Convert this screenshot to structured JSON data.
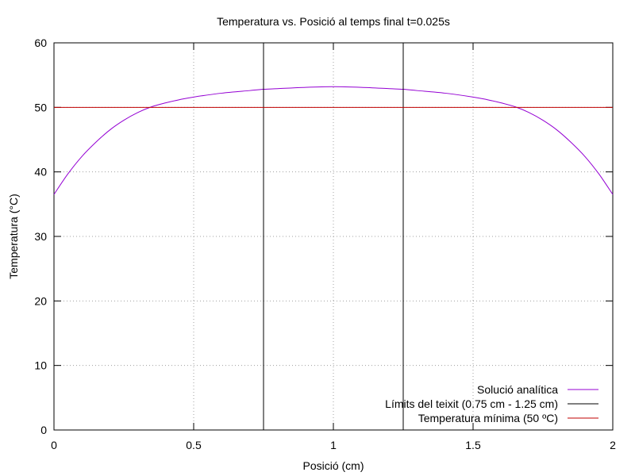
{
  "chart_data": {
    "type": "line",
    "title": "Temperatura vs. Posició al temps final t=0.025s",
    "xlabel": "Posició (cm)",
    "ylabel": "Temperatura (°C)",
    "xlim": [
      0,
      2
    ],
    "ylim": [
      0,
      60
    ],
    "xticks": [
      0,
      0.5,
      1,
      1.5,
      2
    ],
    "xtick_labels": [
      "0",
      "0.5",
      "1",
      "1.5",
      "2"
    ],
    "yticks": [
      0,
      10,
      20,
      30,
      40,
      50,
      60
    ],
    "ytick_labels": [
      "0",
      "10",
      "20",
      "30",
      "40",
      "50",
      "60"
    ],
    "grid": "dotted",
    "legend_position": "bottom-right",
    "series": [
      {
        "name": "Solució analítica",
        "color": "#9400d3",
        "x": [
          0,
          0.05,
          0.1,
          0.15,
          0.2,
          0.25,
          0.3,
          0.35,
          0.4,
          0.45,
          0.5,
          0.6,
          0.7,
          0.75,
          0.8,
          0.9,
          1.0,
          1.1,
          1.2,
          1.25,
          1.3,
          1.4,
          1.5,
          1.55,
          1.6,
          1.65,
          1.7,
          1.75,
          1.8,
          1.85,
          1.9,
          1.95,
          2.0
        ],
        "y": [
          36.5,
          39.7,
          42.4,
          44.6,
          46.5,
          48.0,
          49.2,
          50.1,
          50.7,
          51.2,
          51.6,
          52.2,
          52.6,
          52.8,
          52.9,
          53.1,
          53.2,
          53.1,
          52.9,
          52.8,
          52.6,
          52.2,
          51.6,
          51.2,
          50.7,
          50.1,
          49.2,
          48.0,
          46.5,
          44.6,
          42.4,
          39.7,
          36.5
        ]
      },
      {
        "name": "Límits del teixit (0.75 cm - 1.25 cm)",
        "color": "#000000",
        "vlines": [
          0.75,
          1.25
        ]
      },
      {
        "name": "Temperatura mínima (50 ºC)",
        "color": "#c00000",
        "hline": 50
      }
    ]
  }
}
